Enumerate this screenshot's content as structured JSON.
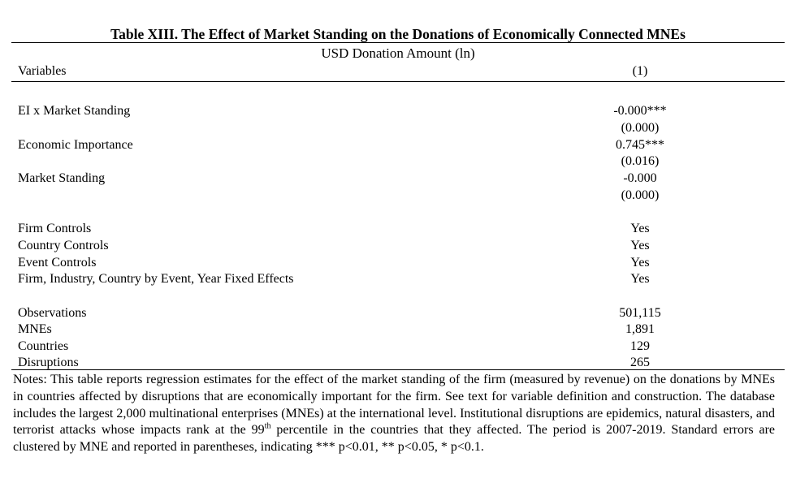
{
  "table": {
    "title": "Table XIII. The Effect of Market Standing on the Donations of Economically Connected MNEs",
    "dependent_variable": "USD Donation Amount (ln)",
    "variables_header": "Variables",
    "column_header": "(1)",
    "coefficients": [
      {
        "label": "EI x Market Standing",
        "estimate": "-0.000***",
        "se": "(0.000)"
      },
      {
        "label": "Economic Importance",
        "estimate": "0.745***",
        "se": "(0.016)"
      },
      {
        "label": "Market Standing",
        "estimate": "-0.000",
        "se": "(0.000)"
      }
    ],
    "controls": [
      {
        "label": "Firm Controls",
        "value": "Yes"
      },
      {
        "label": "Country Controls",
        "value": "Yes"
      },
      {
        "label": "Event Controls",
        "value": "Yes"
      },
      {
        "label": "Firm, Industry, Country by Event, Year Fixed Effects",
        "value": "Yes"
      }
    ],
    "stats": [
      {
        "label": "Observations",
        "value": "501,115"
      },
      {
        "label": "MNEs",
        "value": "1,891"
      },
      {
        "label": "Countries",
        "value": "129"
      },
      {
        "label": "Disruptions",
        "value": "265"
      }
    ],
    "notes": {
      "part1": "Notes: This table reports regression estimates for the effect of the market standing of the firm (measured by revenue) on the donations by MNEs in countries affected by disruptions that are economically important for the firm. See text for variable definition and construction. The database includes the largest 2,000 multinational enterprises (MNEs) at the international level. Institutional disruptions are epidemics, natural disasters, and terrorist attacks whose impacts rank at the 99",
      "superscript": "th",
      "part2": " percentile in the countries that they affected. The period is 2007-2019. Standard errors are clustered by MNE and reported in parentheses, indicating *** p<0.01, ** p<0.05, * p<0.1."
    }
  }
}
